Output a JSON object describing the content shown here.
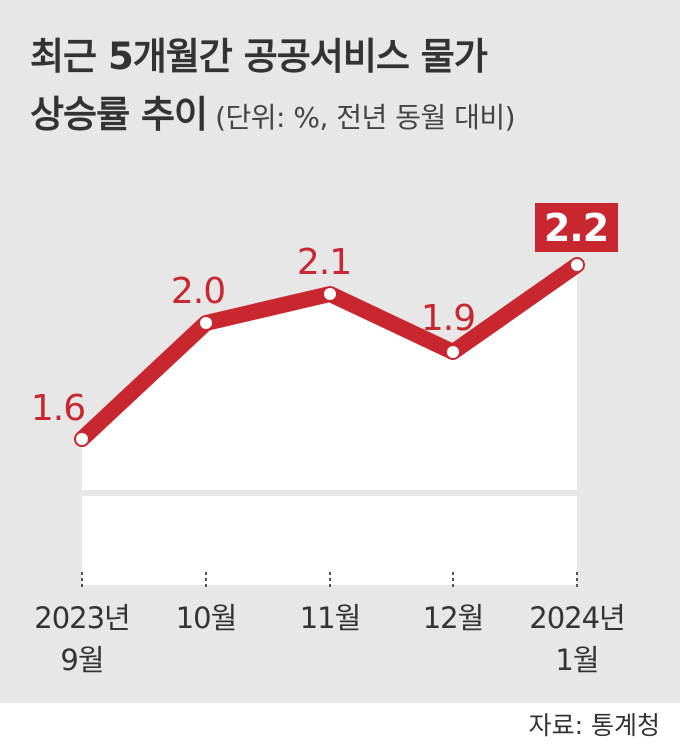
{
  "title": {
    "line1": "최근 5개월간 공공서비스 물가",
    "line2": "상승률 추이",
    "unit_note": "(단위: %, 전년 동월 대비)"
  },
  "source": "자료: 통계청",
  "colors": {
    "background": "#e7e7e7",
    "line": "#c9272f",
    "area": "#ffffff",
    "highlight_box": "#c9272f"
  },
  "chart_data": {
    "type": "line",
    "categories": [
      [
        "2023년",
        "9월"
      ],
      [
        "10월"
      ],
      [
        "11월"
      ],
      [
        "12월"
      ],
      [
        "2024년",
        "1월"
      ]
    ],
    "values": [
      1.6,
      2.0,
      2.1,
      1.9,
      2.2
    ],
    "value_labels": [
      "1.6",
      "2.0",
      "2.1",
      "1.9",
      "2.2"
    ],
    "highlight_last": true,
    "unit": "%",
    "xlabel": "",
    "ylabel": ""
  }
}
